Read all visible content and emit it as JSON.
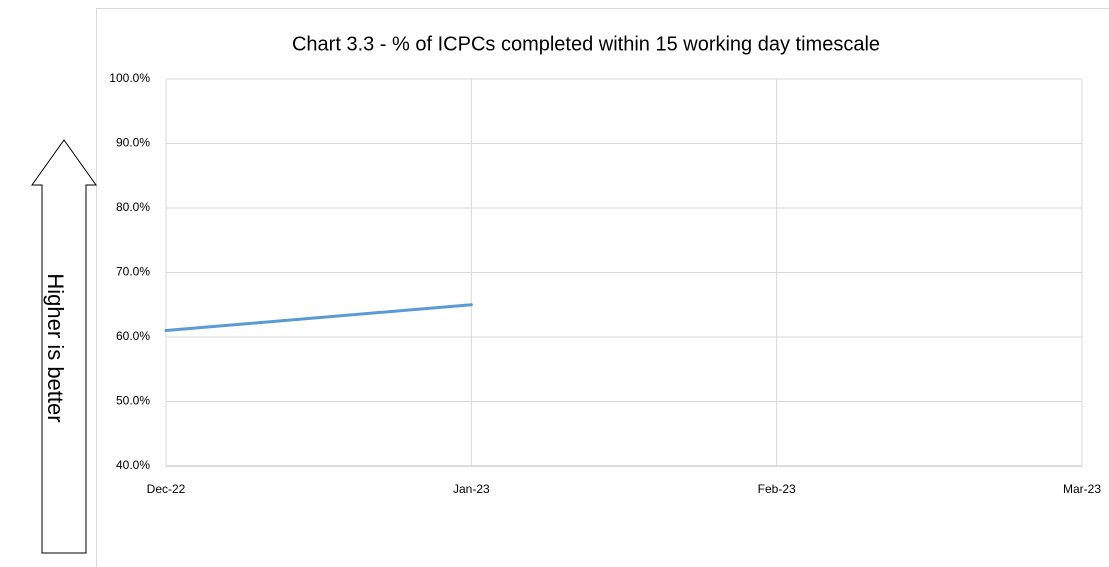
{
  "chart_data": {
    "type": "line",
    "title": "Chart 3.3 - % of ICPCs completed within 15 working day timescale",
    "annotation": "Higher is better",
    "categories": [
      "Dec-22",
      "Jan-23",
      "Feb-23",
      "Mar-23"
    ],
    "series": [
      {
        "name": "% of ICPCs completed within 15 working day timescale",
        "color": "#5b9bd5",
        "values": [
          61,
          65,
          null,
          null
        ]
      }
    ],
    "ylim": [
      40,
      100
    ],
    "yticks": [
      {
        "value": 40,
        "label": "40.0%"
      },
      {
        "value": 50,
        "label": "50.0%"
      },
      {
        "value": 60,
        "label": "60.0%"
      },
      {
        "value": 70,
        "label": "70.0%"
      },
      {
        "value": 80,
        "label": "80.0%"
      },
      {
        "value": 90,
        "label": "90.0%"
      },
      {
        "value": 100,
        "label": "100.0%"
      }
    ],
    "grid": true,
    "legend": false
  }
}
